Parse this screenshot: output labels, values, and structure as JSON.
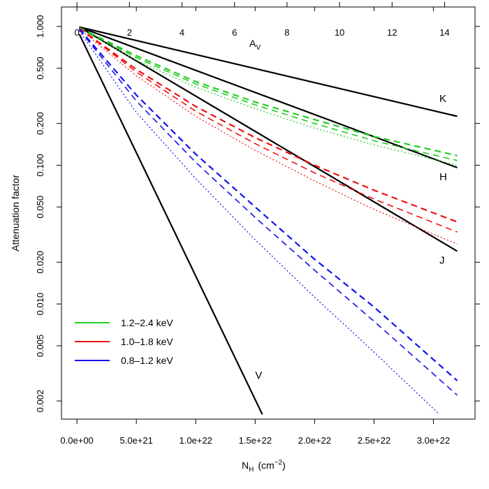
{
  "chart_data": {
    "type": "line",
    "title": "",
    "xlabel": "N",
    "xlabel_sub": "H",
    "xlabel_units_pre": "(cm",
    "xlabel_units_exp": "−2",
    "xlabel_units_post": ")",
    "ylabel": "Attenuation factor",
    "x2label": "A",
    "x2label_sub": "V",
    "xlim": [
      -1.3e+21,
      3.35e+22
    ],
    "ylim_log10": [
      -2.83,
      0.14
    ],
    "y_scale": "log",
    "grid": false,
    "legend_position": "bottom-left",
    "x_ticks": [
      {
        "value": 0,
        "label": "0.0e+00"
      },
      {
        "value": 5e+21,
        "label": "5.0e+21"
      },
      {
        "value": 1e+22,
        "label": "1.0e+22"
      },
      {
        "value": 1.5e+22,
        "label": "1.5e+22"
      },
      {
        "value": 2e+22,
        "label": "2.0e+22"
      },
      {
        "value": 2.5e+22,
        "label": "2.5e+22"
      },
      {
        "value": 3e+22,
        "label": "3.0e+22"
      }
    ],
    "x2_ticks": [
      {
        "value": 0,
        "label": "0"
      },
      {
        "value": 2,
        "label": "2"
      },
      {
        "value": 4,
        "label": "4"
      },
      {
        "value": 6,
        "label": "6"
      },
      {
        "value": 8,
        "label": "8"
      },
      {
        "value": 10,
        "label": "10"
      },
      {
        "value": 12,
        "label": "12"
      },
      {
        "value": 14,
        "label": "14"
      }
    ],
    "x2_scale_NH_per_AV": 2.21e+21,
    "y_ticks": [
      {
        "value": 1.0,
        "label": "1.000"
      },
      {
        "value": 0.5,
        "label": "0.500"
      },
      {
        "value": 0.2,
        "label": "0.200"
      },
      {
        "value": 0.1,
        "label": "0.100"
      },
      {
        "value": 0.05,
        "label": "0.050"
      },
      {
        "value": 0.02,
        "label": "0.020"
      },
      {
        "value": 0.01,
        "label": "0.010"
      },
      {
        "value": 0.005,
        "label": "0.005"
      },
      {
        "value": 0.002,
        "label": "0.002"
      }
    ],
    "series": [
      {
        "label": "K",
        "color": "#000000",
        "style": "solid",
        "width": 2.2,
        "points": [
          [
            2e+20,
            0.99
          ],
          [
            3.2e+22,
            0.225
          ]
        ]
      },
      {
        "label": "H",
        "color": "#000000",
        "style": "solid",
        "width": 2.2,
        "points": [
          [
            2e+20,
            0.99
          ],
          [
            3.2e+22,
            0.096
          ]
        ]
      },
      {
        "label": "J",
        "color": "#000000",
        "style": "solid",
        "width": 2.2,
        "points": [
          [
            2e+20,
            0.99
          ],
          [
            3.2e+22,
            0.024
          ]
        ]
      },
      {
        "label": "V",
        "color": "#000000",
        "style": "solid",
        "width": 2.2,
        "points": [
          [
            2e+20,
            0.88
          ],
          [
            1.56e+22,
            0.0016
          ]
        ]
      },
      {
        "color": "#22cc22",
        "style": "dashed",
        "width": 2.2,
        "points": [
          [
            2e+20,
            0.98
          ],
          [
            5e+21,
            0.615
          ],
          [
            1e+22,
            0.4
          ],
          [
            1.5e+22,
            0.285
          ],
          [
            2e+22,
            0.213
          ],
          [
            2.5e+22,
            0.161
          ],
          [
            3.2e+22,
            0.117
          ]
        ]
      },
      {
        "color": "#22cc22",
        "style": "dashed",
        "width": 1.6,
        "points": [
          [
            2e+20,
            0.98
          ],
          [
            5e+21,
            0.595
          ],
          [
            1e+22,
            0.385
          ],
          [
            1.5e+22,
            0.272
          ],
          [
            2e+22,
            0.2
          ],
          [
            2.5e+22,
            0.15
          ],
          [
            3.2e+22,
            0.108
          ]
        ]
      },
      {
        "color": "#22cc22",
        "style": "dotted",
        "width": 1.2,
        "points": [
          [
            2e+20,
            0.97
          ],
          [
            5e+21,
            0.57
          ],
          [
            1e+22,
            0.365
          ],
          [
            1.5e+22,
            0.255
          ],
          [
            2e+22,
            0.185
          ],
          [
            2.5e+22,
            0.14
          ],
          [
            3.2e+22,
            0.1
          ]
        ]
      },
      {
        "color": "#ee1111",
        "style": "dashed",
        "width": 2.2,
        "points": [
          [
            2e+20,
            0.97
          ],
          [
            5e+21,
            0.49
          ],
          [
            1e+22,
            0.265
          ],
          [
            1.5e+22,
            0.158
          ],
          [
            2e+22,
            0.1
          ],
          [
            2.5e+22,
            0.066
          ],
          [
            3.2e+22,
            0.039
          ]
        ]
      },
      {
        "color": "#ee1111",
        "style": "dashed",
        "width": 1.6,
        "points": [
          [
            2e+20,
            0.97
          ],
          [
            5e+21,
            0.47
          ],
          [
            1e+22,
            0.245
          ],
          [
            1.5e+22,
            0.143
          ],
          [
            2e+22,
            0.088
          ],
          [
            2.5e+22,
            0.057
          ],
          [
            3.2e+22,
            0.033
          ]
        ]
      },
      {
        "color": "#ee1111",
        "style": "dotted",
        "width": 1.2,
        "points": [
          [
            2e+20,
            0.96
          ],
          [
            5e+21,
            0.44
          ],
          [
            1e+22,
            0.225
          ],
          [
            1.5e+22,
            0.128
          ],
          [
            2e+22,
            0.077
          ],
          [
            2.5e+22,
            0.048
          ],
          [
            3.2e+22,
            0.027
          ]
        ]
      },
      {
        "color": "#1111ee",
        "style": "dashed",
        "width": 2.2,
        "points": [
          [
            2e+20,
            0.96
          ],
          [
            5e+21,
            0.32
          ],
          [
            1e+22,
            0.12
          ],
          [
            1.5e+22,
            0.05
          ],
          [
            2e+22,
            0.021
          ],
          [
            2.5e+22,
            0.0095
          ],
          [
            3.2e+22,
            0.0028
          ]
        ]
      },
      {
        "color": "#1111ee",
        "style": "dashed",
        "width": 1.6,
        "points": [
          [
            2e+20,
            0.95
          ],
          [
            5e+21,
            0.29
          ],
          [
            1e+22,
            0.105
          ],
          [
            1.5e+22,
            0.042
          ],
          [
            2e+22,
            0.0175
          ],
          [
            2.5e+22,
            0.0075
          ],
          [
            3.2e+22,
            0.0022
          ]
        ]
      },
      {
        "color": "#1111ee",
        "style": "dotted",
        "width": 1.2,
        "points": [
          [
            2e+20,
            0.93
          ],
          [
            5e+21,
            0.24
          ],
          [
            1e+22,
            0.08
          ],
          [
            1.5e+22,
            0.029
          ],
          [
            2e+22,
            0.0112
          ],
          [
            2.5e+22,
            0.0045
          ],
          [
            3.05e+22,
            0.0016
          ]
        ]
      }
    ],
    "curve_labels": [
      {
        "text": "K",
        "x": 3.05e+22,
        "y": 0.285
      },
      {
        "text": "H",
        "x": 3.05e+22,
        "y": 0.078
      },
      {
        "text": "J",
        "x": 3.05e+22,
        "y": 0.0195
      },
      {
        "text": "V",
        "x": 1.5e+22,
        "y": 0.0029
      }
    ],
    "legend": [
      {
        "label": "1.2–2.4 keV",
        "color": "#22cc22"
      },
      {
        "label": "1.0–1.8 keV",
        "color": "#ee1111"
      },
      {
        "label": "0.8–1.2 keV",
        "color": "#1111ee"
      }
    ]
  }
}
